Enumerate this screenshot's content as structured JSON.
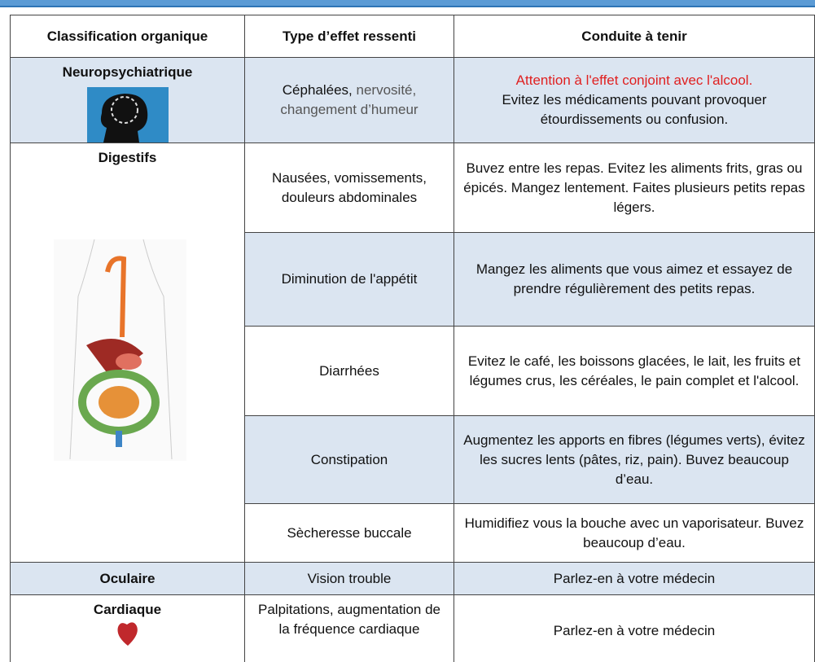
{
  "table": {
    "headers": [
      "Classification organique",
      "Type d’effet ressenti",
      "Conduite à tenir"
    ],
    "groups": [
      {
        "classification": "Neuropsychiatrique",
        "rows": [
          {
            "effect": [
              "Céphalées,",
              "nervosité, changement d’humeur"
            ],
            "advice": [
              "Attention à l'effet conjoint avec l'alcool.",
              "Evitez les médicaments pouvant provoquer étourdissements ou confusion."
            ]
          }
        ]
      },
      {
        "classification": "Digestifs",
        "rows": [
          {
            "effect": [
              "Nausées, vomissements, douleurs abdominales"
            ],
            "advice": [
              "Buvez entre les repas. Evitez les aliments frits, gras ou épicés. Mangez lentement. Faites plusieurs petits repas légers."
            ]
          },
          {
            "effect": [
              "Diminution de l'appétit"
            ],
            "advice": [
              "Mangez les aliments que vous aimez et essayez de prendre régulièrement des petits repas."
            ]
          },
          {
            "effect": [
              "Diarrhées"
            ],
            "advice": [
              "Evitez le café, les boissons glacées, le lait, les fruits et légumes crus, les céréales, le pain complet et l'alcool."
            ]
          },
          {
            "effect": [
              "Constipation"
            ],
            "advice": [
              "Augmentez les apports en fibres (légumes verts), évitez les sucres lents (pâtes, riz, pain). Buvez beaucoup d’eau."
            ]
          },
          {
            "effect": [
              "Sècheresse buccale"
            ],
            "advice": [
              "Humidifiez vous la bouche avec un vaporisateur. Buvez beaucoup d’eau."
            ]
          }
        ]
      },
      {
        "classification": "Oculaire",
        "rows": [
          {
            "effect": [
              "Vision trouble"
            ],
            "advice": [
              "Parlez-en à votre médecin"
            ]
          }
        ]
      },
      {
        "classification": "Cardiaque",
        "rows": [
          {
            "effect": [
              "Palpitations, augmentation de la fréquence cardiaque"
            ],
            "advice": [
              "Parlez-en à votre médecin"
            ]
          }
        ]
      }
    ]
  }
}
